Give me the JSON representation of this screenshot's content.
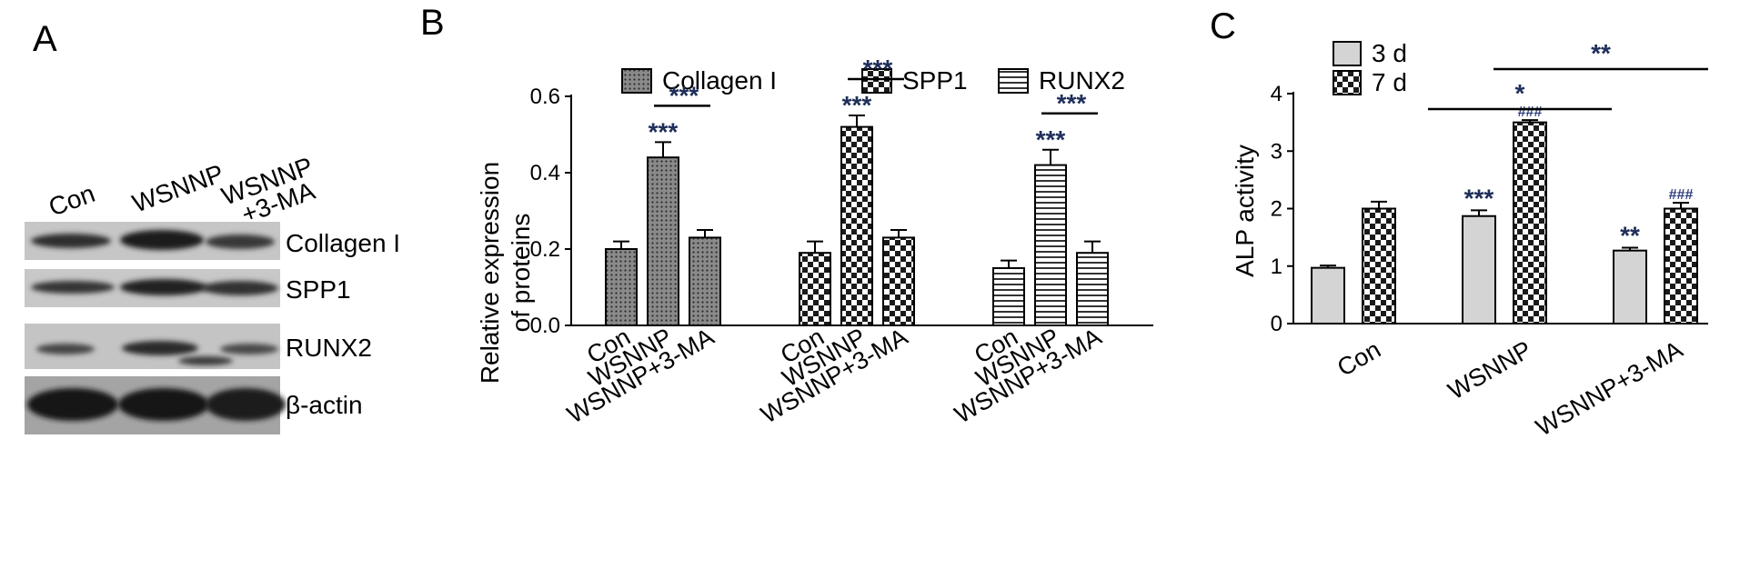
{
  "panels": {
    "a": "A",
    "b": "B",
    "c": "C"
  },
  "western_blot": {
    "lanes": [
      "Con",
      "WSNNP",
      "WSNNP",
      "+3-MA"
    ],
    "rows": [
      "Collagen I",
      "SPP1",
      "RUNX2",
      "β-actin"
    ]
  },
  "chart_data": [
    {
      "type": "bar",
      "panel": "B",
      "title": "",
      "xlabel": "",
      "ylabel": "Relative expression of proteins",
      "ylabel_lines": [
        "Relative expression",
        "of proteins"
      ],
      "ylim": [
        0,
        0.6
      ],
      "yticks": [
        "0.0",
        "0.2",
        "0.4",
        "0.6"
      ],
      "legend_position": "top",
      "conditions": [
        "Con",
        "WSNNP",
        "WSNNP+3-MA"
      ],
      "series": [
        {
          "name": "Collagen I",
          "pattern": "dots",
          "values": [
            0.2,
            0.44,
            0.23
          ],
          "errors": [
            0.02,
            0.04,
            0.02
          ],
          "significance": [
            "",
            "***",
            ""
          ],
          "bracket": "***"
        },
        {
          "name": "SPP1",
          "pattern": "checker",
          "values": [
            0.19,
            0.52,
            0.23
          ],
          "errors": [
            0.03,
            0.03,
            0.02
          ],
          "significance": [
            "",
            "***",
            ""
          ],
          "bracket": "***"
        },
        {
          "name": "RUNX2",
          "pattern": "hlines",
          "values": [
            0.15,
            0.42,
            0.19
          ],
          "errors": [
            0.02,
            0.04,
            0.03
          ],
          "significance": [
            "",
            "***",
            ""
          ],
          "bracket": "***"
        }
      ]
    },
    {
      "type": "bar",
      "panel": "C",
      "title": "",
      "xlabel": "",
      "ylabel": "ALP activity",
      "ylim": [
        0,
        4
      ],
      "yticks": [
        "0",
        "1",
        "2",
        "3",
        "4"
      ],
      "legend_position": "top-left",
      "categories": [
        "Con",
        "WSNNP",
        "WSNNP+3-MA"
      ],
      "series": [
        {
          "name": "3 d",
          "pattern": "solid",
          "values": [
            0.97,
            1.87,
            1.27
          ],
          "errors": [
            0.04,
            0.1,
            0.05
          ],
          "significance": [
            "",
            "***",
            "**"
          ]
        },
        {
          "name": "7 d",
          "pattern": "checker",
          "values": [
            2.0,
            3.5,
            2.0
          ],
          "errors": [
            0.12,
            0.04,
            0.1
          ],
          "significance": [
            "",
            "###",
            "###"
          ]
        }
      ],
      "brackets": [
        "*",
        "**"
      ]
    }
  ]
}
